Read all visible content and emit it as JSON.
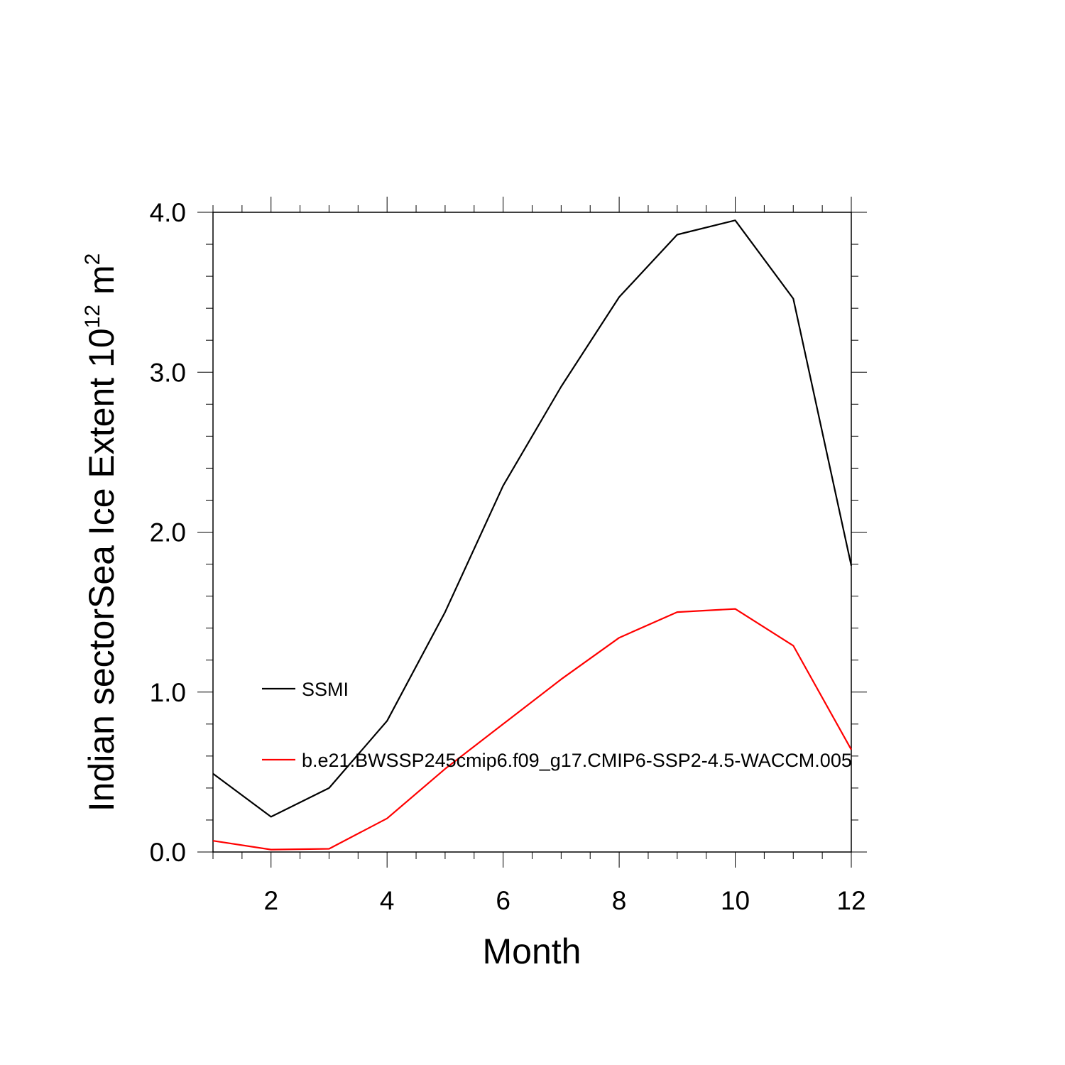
{
  "chart_data": {
    "type": "line",
    "xlabel": "Month",
    "ylabel_main": "Indian sectorSea Ice Extent 10",
    "ylabel_exp": "12",
    "ylabel_unit": " m",
    "ylabel_unit_exp": "2",
    "xlim": [
      1,
      12
    ],
    "ylim": [
      0.0,
      4.0
    ],
    "x_ticks": [
      2,
      4,
      6,
      8,
      10,
      12
    ],
    "y_ticks": [
      "0.0",
      "1.0",
      "2.0",
      "3.0",
      "4.0"
    ],
    "grid": false,
    "legend_position": "inside-left",
    "x": [
      1,
      2,
      3,
      4,
      5,
      6,
      7,
      8,
      9,
      10,
      11,
      12
    ],
    "series": [
      {
        "name": "SSMI",
        "color": "#000000",
        "values": [
          0.49,
          0.22,
          0.4,
          0.82,
          1.5,
          2.29,
          2.91,
          3.47,
          3.86,
          3.95,
          3.46,
          1.79
        ]
      },
      {
        "name": "b.e21.BWSSP245cmip6.f09_g17.CMIP6-SSP2-4.5-WACCM.005",
        "color": "#ff0000",
        "values": [
          0.07,
          0.015,
          0.02,
          0.21,
          0.52,
          0.8,
          1.08,
          1.34,
          1.5,
          1.52,
          1.29,
          0.64
        ]
      }
    ]
  }
}
